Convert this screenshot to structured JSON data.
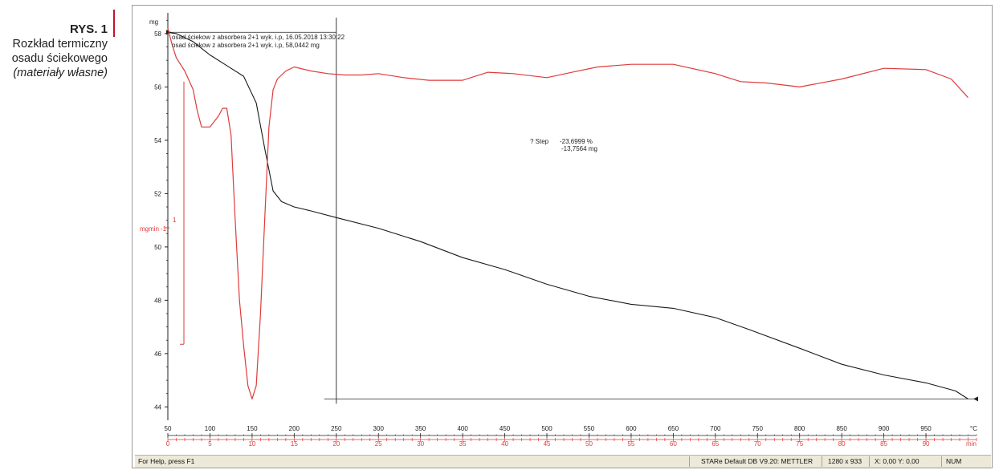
{
  "caption": {
    "figure_label": "RYS. 1",
    "line1": "Rozkład termiczny",
    "line2": "osadu ściekowego",
    "source": "(materiały własne)"
  },
  "chart_data": {
    "type": "line",
    "title": "",
    "legend": [
      "osad ściekow z absorbera 2+1 wyk. i.p, 16.05.2018 13:30:22",
      "osad ściekow z absorbera 2+1 wyk. i.p, 58,0442 mg"
    ],
    "y_unit": "mg",
    "y2_unit": "mgmin^-1",
    "y2_label_top": "1",
    "y2_label": "mgmin",
    "y2_label_sup": "-1",
    "x_unit": "°C",
    "x2_unit": "min",
    "ylim": [
      43.8,
      58.6
    ],
    "xlim": [
      50,
      1010
    ],
    "x2lim": [
      0,
      96
    ],
    "yticks": [
      44,
      46,
      48,
      50,
      52,
      54,
      56,
      58
    ],
    "xticks": [
      50,
      100,
      150,
      200,
      250,
      300,
      350,
      400,
      450,
      500,
      550,
      600,
      650,
      700,
      750,
      800,
      850,
      900,
      950
    ],
    "x2ticks": [
      0,
      5,
      10,
      15,
      20,
      25,
      30,
      35,
      40,
      45,
      50,
      55,
      60,
      65,
      70,
      75,
      80,
      85,
      90
    ],
    "annotation": {
      "label": "? Step",
      "percent": "-23,6999 %",
      "mass": "-13,7564 mg"
    },
    "series": [
      {
        "name": "",
        "axis": "mg",
        "color": "#1a1a1a",
        "x": [
          50,
          60,
          80,
          100,
          120,
          140,
          155,
          165,
          175,
          185,
          200,
          220,
          250,
          300,
          350,
          400,
          450,
          500,
          550,
          600,
          650,
          700,
          740,
          800,
          850,
          900,
          950,
          985,
          1000
        ],
        "y": [
          58.05,
          58.0,
          57.7,
          57.2,
          56.8,
          56.4,
          55.4,
          53.7,
          52.1,
          51.7,
          51.5,
          51.35,
          51.1,
          50.7,
          50.2,
          49.6,
          49.15,
          48.6,
          48.15,
          47.85,
          47.7,
          47.35,
          46.9,
          46.2,
          45.6,
          45.2,
          44.9,
          44.6,
          44.3
        ]
      },
      {
        "name": "",
        "axis": "dtg",
        "color": "#e03a3a",
        "x": [
          50,
          55,
          60,
          70,
          80,
          85,
          90,
          100,
          110,
          115,
          120,
          125,
          130,
          135,
          140,
          145,
          150,
          155,
          160,
          165,
          170,
          175,
          180,
          190,
          200,
          220,
          240,
          260,
          280,
          300,
          330,
          360,
          400,
          430,
          460,
          500,
          530,
          560,
          600,
          650,
          700,
          730,
          760,
          800,
          850,
          900,
          950,
          980,
          1000
        ],
        "y": [
          58.2,
          57.6,
          57.1,
          56.6,
          55.9,
          55.1,
          54.5,
          54.5,
          54.9,
          55.2,
          55.2,
          54.2,
          51.0,
          48.0,
          46.3,
          44.8,
          44.3,
          44.8,
          47.5,
          51.0,
          54.5,
          55.9,
          56.3,
          56.6,
          56.75,
          56.6,
          56.5,
          56.45,
          56.45,
          56.5,
          56.35,
          56.25,
          56.25,
          56.55,
          56.5,
          56.35,
          56.55,
          56.75,
          56.85,
          56.85,
          56.5,
          56.2,
          56.15,
          56.0,
          56.3,
          56.7,
          56.65,
          56.3,
          55.6
        ]
      }
    ]
  },
  "statusbar": {
    "help": "For Help, press F1",
    "db": "STARe Default DB V9.20: METTLER",
    "resolution": "1280 x 933",
    "coords": "X: 0,00 Y: 0,00",
    "num": "NUM"
  }
}
